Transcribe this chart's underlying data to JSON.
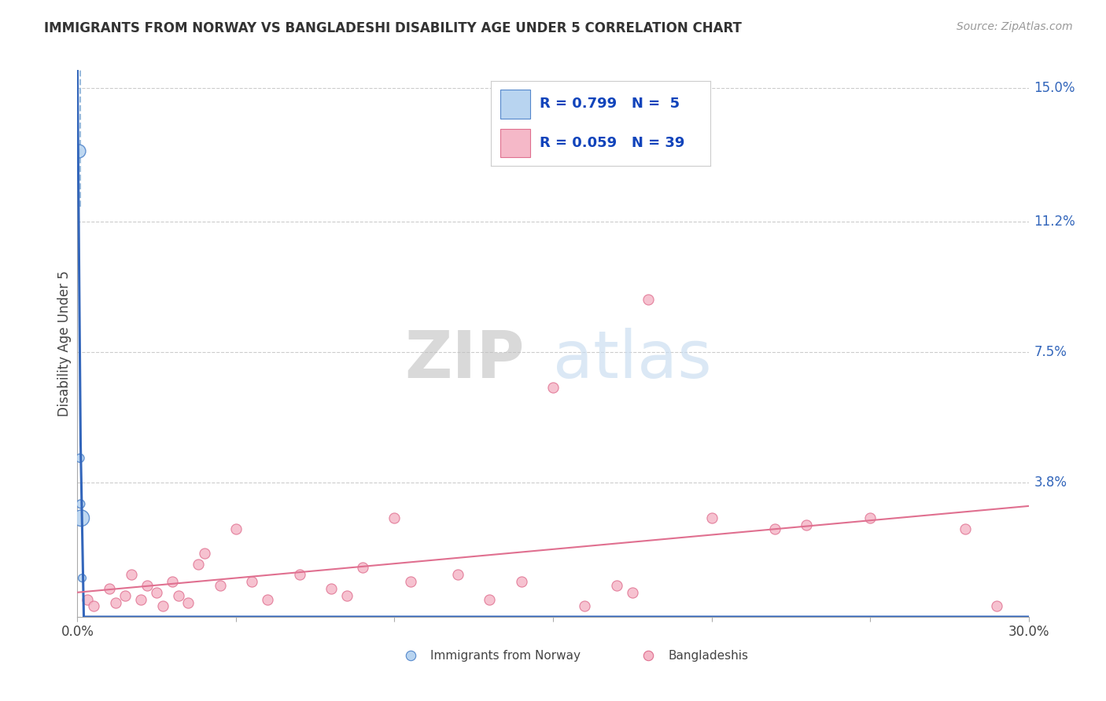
{
  "title": "IMMIGRANTS FROM NORWAY VS BANGLADESHI DISABILITY AGE UNDER 5 CORRELATION CHART",
  "source": "Source: ZipAtlas.com",
  "ylabel": "Disability Age Under 5",
  "xlim": [
    0.0,
    30.0
  ],
  "ylim": [
    0.0,
    15.5
  ],
  "yticks_right": [
    0.0,
    3.8,
    7.5,
    11.2,
    15.0
  ],
  "ytick_labels_right": [
    "",
    "3.8%",
    "7.5%",
    "11.2%",
    "15.0%"
  ],
  "norway_color": "#b8d4f0",
  "norway_edge_color": "#5588cc",
  "bangladesh_color": "#f5b8c8",
  "bangladesh_edge_color": "#e07090",
  "norway_line_color": "#3366bb",
  "bangladesh_line_color": "#e07090",
  "norway_dash_color": "#99bbdd",
  "background_color": "#ffffff",
  "grid_color": "#cccccc",
  "norway_points_x": [
    0.05,
    0.08,
    0.1,
    0.12,
    0.15
  ],
  "norway_points_y": [
    13.2,
    4.5,
    3.2,
    2.8,
    1.1
  ],
  "norway_sizes": [
    150,
    60,
    60,
    220,
    50
  ],
  "bangladesh_points_x": [
    0.3,
    0.5,
    1.0,
    1.2,
    1.5,
    1.7,
    2.0,
    2.2,
    2.5,
    2.7,
    3.0,
    3.2,
    3.5,
    3.8,
    4.0,
    4.5,
    5.0,
    5.5,
    6.0,
    7.0,
    8.0,
    8.5,
    9.0,
    10.0,
    10.5,
    12.0,
    13.0,
    14.0,
    15.0,
    16.0,
    17.0,
    17.5,
    18.0,
    20.0,
    22.0,
    23.0,
    25.0,
    28.0,
    29.0
  ],
  "bangladesh_points_y": [
    0.5,
    0.3,
    0.8,
    0.4,
    0.6,
    1.2,
    0.5,
    0.9,
    0.7,
    0.3,
    1.0,
    0.6,
    0.4,
    1.5,
    1.8,
    0.9,
    2.5,
    1.0,
    0.5,
    1.2,
    0.8,
    0.6,
    1.4,
    2.8,
    1.0,
    1.2,
    0.5,
    1.0,
    6.5,
    0.3,
    0.9,
    0.7,
    9.0,
    2.8,
    2.5,
    2.6,
    2.8,
    2.5,
    0.3
  ],
  "legend_text_color": "#1144bb",
  "watermark_zip_color": "#c8ddf0",
  "watermark_atlas_color": "#d5c5b8"
}
